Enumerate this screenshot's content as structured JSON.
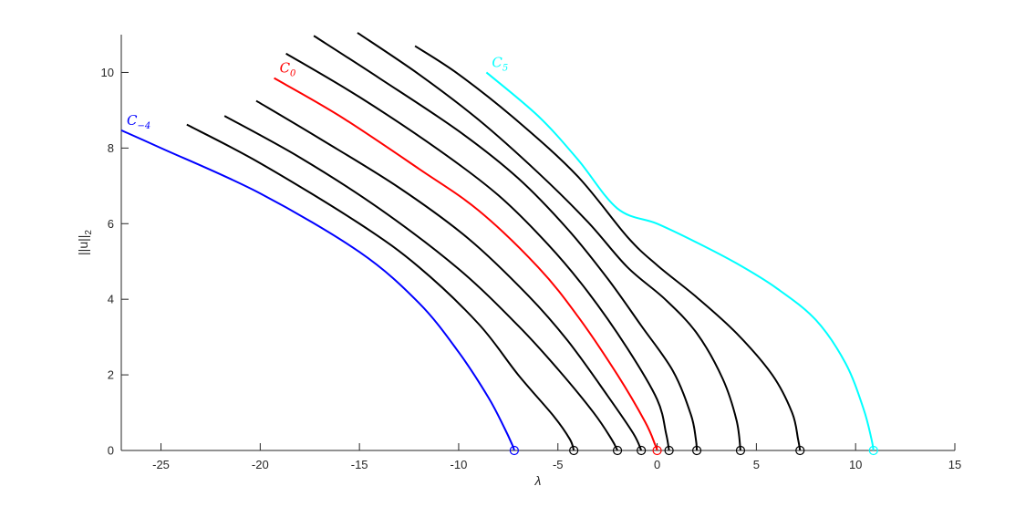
{
  "chart_data": {
    "type": "line",
    "title": "",
    "xlabel": "λ",
    "ylabel": "||u||",
    "ylabel_subscript": "2",
    "xlim": [
      -27,
      15
    ],
    "ylim": [
      0,
      11
    ],
    "xticks": [
      -25,
      -20,
      -15,
      -10,
      -5,
      0,
      5,
      10,
      15
    ],
    "yticks": [
      0,
      2,
      4,
      6,
      8,
      10
    ],
    "xtick_labels": [
      "-25",
      "-20",
      "-15",
      "-10",
      "-5",
      "0",
      "5",
      "10",
      "15"
    ],
    "ytick_labels": [
      "0",
      "2",
      "4",
      "6",
      "8",
      "10"
    ],
    "grid": false,
    "baseline_color": "#000000",
    "series": [
      {
        "name": "C-4",
        "label_main": "C",
        "label_sub": "−4",
        "color": "#0000ff",
        "bifurcation": -7.2,
        "points": [
          [
            -27,
            8.47
          ],
          [
            -25,
            8.0
          ],
          [
            -20,
            6.8
          ],
          [
            -15,
            5.25
          ],
          [
            -12,
            3.9
          ],
          [
            -10,
            2.6
          ],
          [
            -8.5,
            1.4
          ],
          [
            -7.7,
            0.6
          ],
          [
            -7.3,
            0.15
          ],
          [
            -7.2,
            0
          ]
        ]
      },
      {
        "name": "",
        "color": "#000000",
        "bifurcation": -4.2,
        "points": [
          [
            -23.7,
            8.62
          ],
          [
            -20,
            7.6
          ],
          [
            -15,
            6.0
          ],
          [
            -12,
            4.85
          ],
          [
            -9,
            3.35
          ],
          [
            -7,
            2.0
          ],
          [
            -5.2,
            0.9
          ],
          [
            -4.4,
            0.3
          ],
          [
            -4.2,
            0
          ]
        ]
      },
      {
        "name": "",
        "color": "#000000",
        "bifurcation": -2.0,
        "points": [
          [
            -21.8,
            8.85
          ],
          [
            -18,
            7.75
          ],
          [
            -14,
            6.4
          ],
          [
            -10,
            4.8
          ],
          [
            -7,
            3.3
          ],
          [
            -5,
            2.15
          ],
          [
            -3.2,
            1.0
          ],
          [
            -2.3,
            0.3
          ],
          [
            -2.0,
            0
          ]
        ]
      },
      {
        "name": "",
        "color": "#000000",
        "bifurcation": -0.8,
        "points": [
          [
            -20.2,
            9.25
          ],
          [
            -17,
            8.25
          ],
          [
            -13,
            6.95
          ],
          [
            -9.5,
            5.6
          ],
          [
            -6.5,
            4.1
          ],
          [
            -4.5,
            2.9
          ],
          [
            -2.5,
            1.45
          ],
          [
            -1.2,
            0.45
          ],
          [
            -0.8,
            0
          ]
        ]
      },
      {
        "name": "C0",
        "label_main": "C",
        "label_sub": "0",
        "color": "#ff0000",
        "bifurcation": 0.0,
        "points": [
          [
            -19.3,
            9.85
          ],
          [
            -16,
            8.85
          ],
          [
            -12,
            7.45
          ],
          [
            -9,
            6.35
          ],
          [
            -6,
            4.85
          ],
          [
            -4,
            3.55
          ],
          [
            -2,
            2.0
          ],
          [
            -0.6,
            0.75
          ],
          [
            -0.1,
            0.15
          ],
          [
            0.0,
            0
          ]
        ]
      },
      {
        "name": "",
        "color": "#000000",
        "bifurcation": 0.6,
        "points": [
          [
            -18.7,
            10.5
          ],
          [
            -15,
            9.35
          ],
          [
            -11,
            7.95
          ],
          [
            -8,
            6.75
          ],
          [
            -5.5,
            5.45
          ],
          [
            -3.5,
            4.2
          ],
          [
            -1.5,
            2.7
          ],
          [
            0,
            1.35
          ],
          [
            0.45,
            0.45
          ],
          [
            0.6,
            0
          ]
        ]
      },
      {
        "name": "",
        "color": "#000000",
        "bifurcation": 2.0,
        "points": [
          [
            -17.3,
            10.97
          ],
          [
            -14,
            9.85
          ],
          [
            -10,
            8.45
          ],
          [
            -7,
            7.2
          ],
          [
            -4.5,
            5.85
          ],
          [
            -2.5,
            4.55
          ],
          [
            -0.8,
            3.3
          ],
          [
            0.8,
            2.1
          ],
          [
            1.7,
            0.95
          ],
          [
            1.95,
            0.3
          ],
          [
            2.0,
            0
          ]
        ]
      },
      {
        "name": "",
        "color": "#000000",
        "bifurcation": 4.2,
        "points": [
          [
            -15.1,
            11.05
          ],
          [
            -12,
            9.95
          ],
          [
            -9,
            8.75
          ],
          [
            -6,
            7.35
          ],
          [
            -3.5,
            6.05
          ],
          [
            -1.5,
            4.85
          ],
          [
            0.4,
            4.0
          ],
          [
            2.0,
            3.1
          ],
          [
            3.3,
            1.9
          ],
          [
            4.0,
            0.8
          ],
          [
            4.2,
            0
          ]
        ]
      },
      {
        "name": "",
        "color": "#000000",
        "bifurcation": 7.2,
        "points": [
          [
            -12.2,
            10.7
          ],
          [
            -10,
            9.95
          ],
          [
            -7,
            8.7
          ],
          [
            -4,
            7.25
          ],
          [
            -1.5,
            5.65
          ],
          [
            0,
            4.9
          ],
          [
            2,
            4.05
          ],
          [
            4,
            3.1
          ],
          [
            5.8,
            2.0
          ],
          [
            6.8,
            1.0
          ],
          [
            7.1,
            0.3
          ],
          [
            7.2,
            0
          ]
        ]
      },
      {
        "name": "C5",
        "label_main": "C",
        "label_sub": "5",
        "color": "#00ffff",
        "bifurcation": 10.9,
        "points": [
          [
            -8.6,
            10.0
          ],
          [
            -6,
            8.85
          ],
          [
            -4,
            7.7
          ],
          [
            -2,
            6.4
          ],
          [
            0,
            6.0
          ],
          [
            2,
            5.5
          ],
          [
            4,
            4.95
          ],
          [
            6,
            4.3
          ],
          [
            8,
            3.45
          ],
          [
            9.5,
            2.3
          ],
          [
            10.4,
            1.1
          ],
          [
            10.8,
            0.3
          ],
          [
            10.9,
            0
          ]
        ]
      }
    ]
  }
}
